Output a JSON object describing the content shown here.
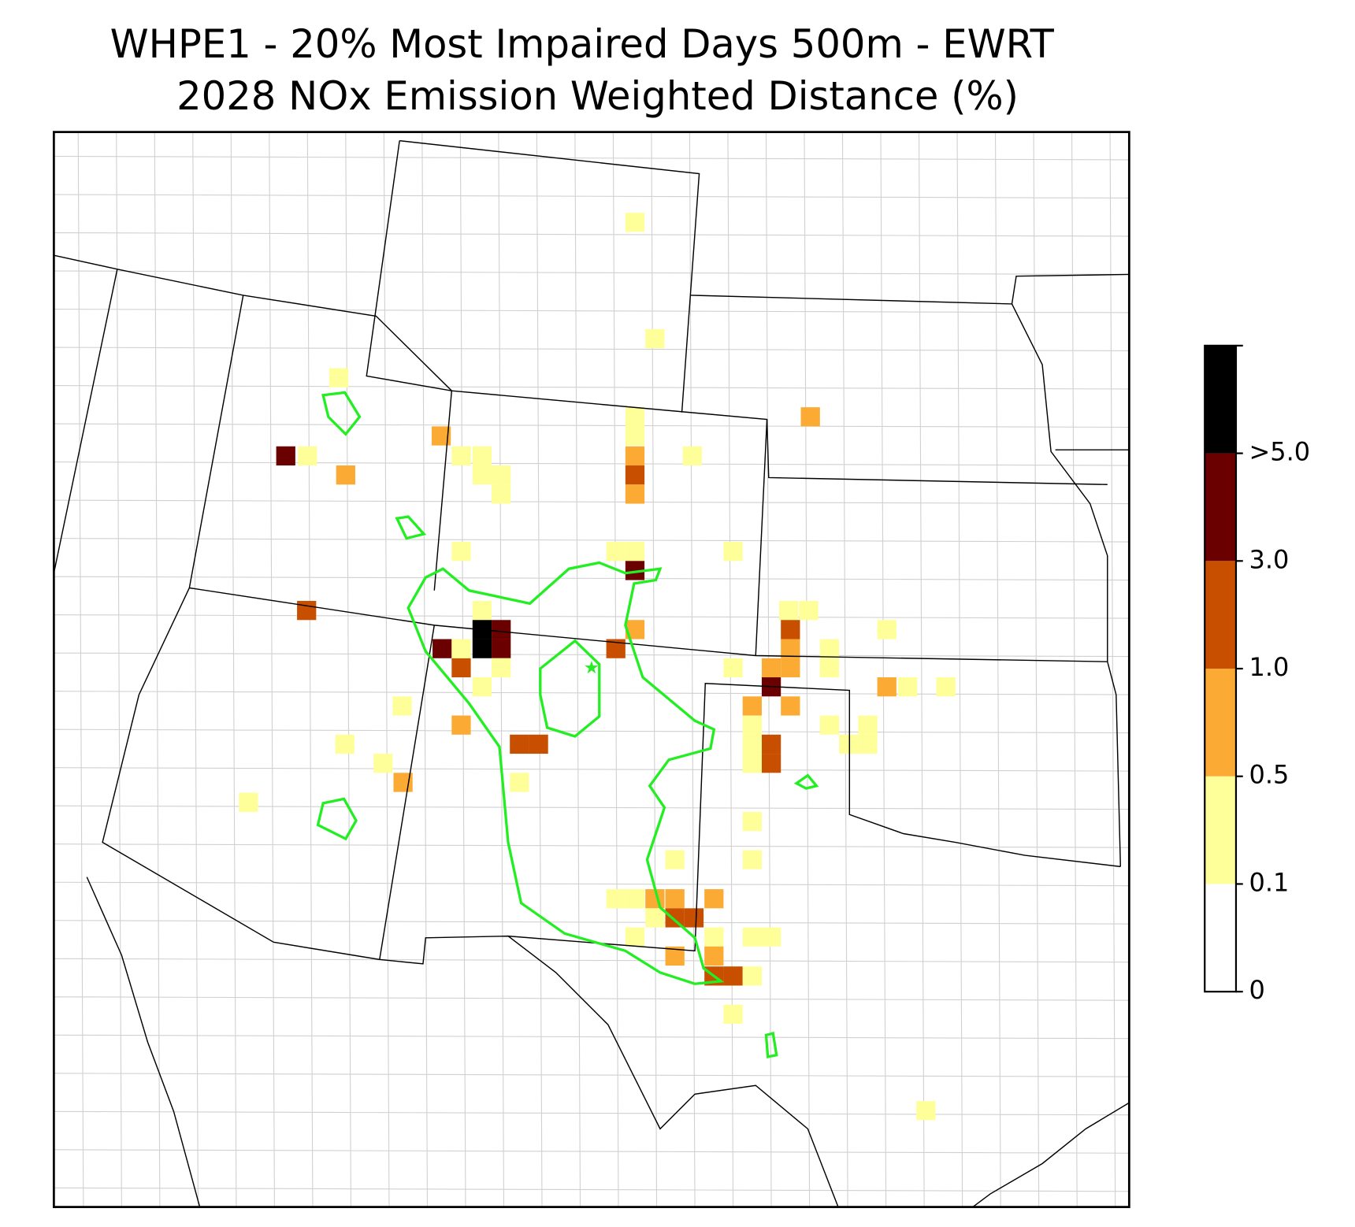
{
  "title": [
    "WHPE1 - 20% Most Impaired Days 500m - EWRT",
    "2028 NOx Emission Weighted Distance (%)"
  ],
  "colorbar": {
    "ticks": [
      0,
      0.1,
      0.5,
      {
        "value": 1,
        "label": "1.0"
      },
      {
        "value": 3,
        "label": "3.0"
      },
      {
        "value": 5,
        "label": ">5.0"
      }
    ],
    "colors": [
      "#ffffff",
      "#ffff99",
      "#fbaa33",
      "#c84f00",
      "#6b0000",
      "#000000"
    ]
  }
}
